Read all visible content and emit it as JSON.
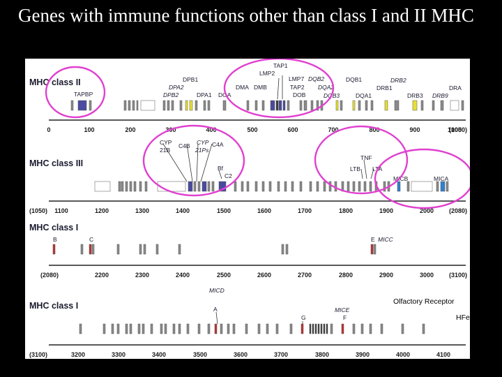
{
  "slide_title": "Genes with immune functions other than class I and II MHC",
  "colors": {
    "highlight_circle": "#e040d0",
    "class_ii_highlight": "#e8e030",
    "class_ii_transporter": "#4a4aa0",
    "class_iii_highlight": "#4a4aa0",
    "class_i_highlight": "#c03030",
    "mic_highlight": "#3080d0"
  },
  "sections": [
    {
      "title": "MHC class II",
      "range": [
        0,
        1050
      ],
      "ticks": [
        "0",
        "100",
        "200",
        "300",
        "400",
        "500",
        "600",
        "700",
        "800",
        "900",
        "1000",
        "(1050)"
      ],
      "labels": [
        {
          "text": "TAPBP"
        },
        {
          "text": "DPB1"
        },
        {
          "text": "DPA2",
          "italic": true
        },
        {
          "text": "DPB2",
          "italic": true
        },
        {
          "text": "DPA1"
        },
        {
          "text": "DOA"
        },
        {
          "text": "TAP1"
        },
        {
          "text": "LMP2"
        },
        {
          "text": "DMA"
        },
        {
          "text": "DMB"
        },
        {
          "text": "LMP7"
        },
        {
          "text": "TAP2"
        },
        {
          "text": "DOB"
        },
        {
          "text": "DQB2",
          "italic": true
        },
        {
          "text": "DQA2",
          "italic": true
        },
        {
          "text": "DQB3",
          "italic": true
        },
        {
          "text": "DQB1"
        },
        {
          "text": "DQA1"
        },
        {
          "text": "DRB1"
        },
        {
          "text": "DRB2",
          "italic": true
        },
        {
          "text": "DRB3"
        },
        {
          "text": "DRB9",
          "italic": true
        },
        {
          "text": "DRA"
        }
      ]
    },
    {
      "title": "MHC class III",
      "range": [
        1050,
        2080
      ],
      "ticks": [
        "(1050)",
        "1100",
        "1200",
        "1300",
        "1400",
        "1500",
        "1600",
        "1700",
        "1800",
        "1900",
        "2000",
        "(2080)"
      ],
      "labels": [
        {
          "text": "CYP"
        },
        {
          "text": "21B"
        },
        {
          "text": "C4B"
        },
        {
          "text": "CYP",
          "italic": true
        },
        {
          "text": "21Ps",
          "italic": true
        },
        {
          "text": "C4A"
        },
        {
          "text": "Bf"
        },
        {
          "text": "C2"
        },
        {
          "text": "TNF"
        },
        {
          "text": "LTB"
        },
        {
          "text": "LTA"
        },
        {
          "text": "MICB"
        },
        {
          "text": "MICA"
        }
      ]
    },
    {
      "title": "MHC class I",
      "range": [
        2080,
        3100
      ],
      "ticks": [
        "(2080)",
        "2200",
        "2300",
        "2400",
        "2500",
        "2600",
        "2700",
        "2800",
        "2900",
        "3000",
        "(3100)"
      ],
      "labels": [
        {
          "text": "B"
        },
        {
          "text": "C"
        },
        {
          "text": "E"
        },
        {
          "text": "MICC",
          "italic": true
        }
      ]
    },
    {
      "title": "MHC class I",
      "range": [
        3100,
        4100
      ],
      "ticks": [
        "(3100)",
        "3200",
        "3300",
        "3400",
        "3500",
        "3600",
        "3700",
        "3800",
        "3900",
        "4000",
        "4100"
      ],
      "labels": [
        {
          "text": "MICD",
          "italic": true
        },
        {
          "text": "A"
        },
        {
          "text": "MICE",
          "italic": true
        },
        {
          "text": "G"
        },
        {
          "text": "F"
        }
      ]
    }
  ],
  "legend": {
    "olfactory": "Olfactory Receptor",
    "hfe": "HFe"
  }
}
